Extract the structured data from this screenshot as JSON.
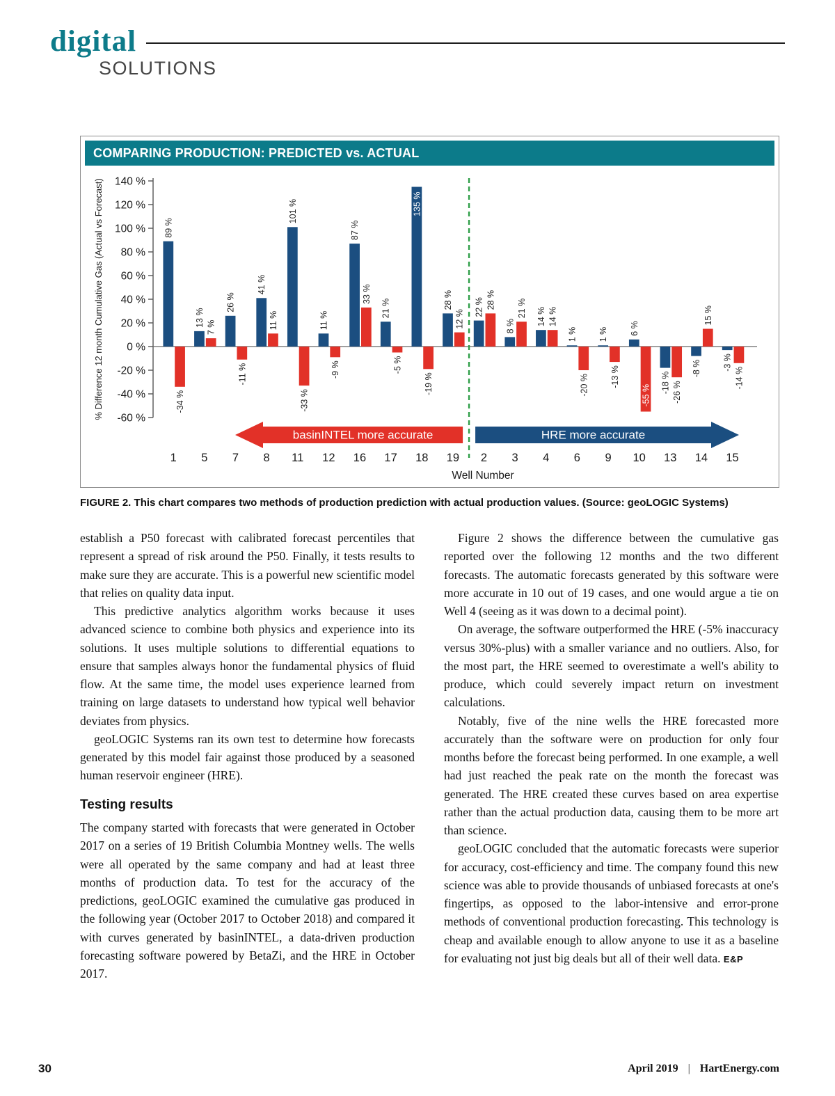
{
  "masthead": {
    "brand": "digital",
    "section": "SOLUTIONS"
  },
  "figure": {
    "title_bar": "COMPARING PRODUCTION: PREDICTED vs. ACTUAL",
    "caption_label": "FIGURE 2.",
    "caption_text": " This chart compares two methods of production prediction with actual production values. (Source: geoLOGIC Systems)"
  },
  "chart_data": {
    "type": "bar",
    "title": "COMPARING PRODUCTION: PREDICTED vs. ACTUAL",
    "xlabel": "Well Number",
    "ylabel": "% Difference 12 month Cumulative Gas (Actual vs Forecast)",
    "ylim": [
      -60,
      140
    ],
    "ytick_step": 20,
    "ytick_suffix": " %",
    "grid": false,
    "legend": "none",
    "categories": [
      "1",
      "5",
      "7",
      "8",
      "11",
      "12",
      "16",
      "17",
      "18",
      "19",
      "2",
      "3",
      "4",
      "6",
      "9",
      "10",
      "13",
      "14",
      "15"
    ],
    "series": [
      {
        "name": "HRE",
        "color": "#1b4e80",
        "values": [
          89,
          13,
          26,
          41,
          101,
          11,
          87,
          21,
          135,
          28,
          22,
          8,
          14,
          1,
          1,
          6,
          -18,
          -8,
          -3
        ]
      },
      {
        "name": "basinINTEL",
        "color": "#e23128",
        "values": [
          -34,
          7,
          -11,
          11,
          -33,
          -9,
          33,
          -5,
          -19,
          12,
          28,
          21,
          14,
          -20,
          -13,
          -55,
          -26,
          15,
          -14
        ]
      }
    ],
    "bar_label_suffix": " %",
    "divider": {
      "after_category": "19",
      "color": "#2f9e48",
      "style": "dashed"
    },
    "annotations": [
      {
        "text": "basinINTEL more accurate",
        "side": "left",
        "color": "#e23128",
        "shape": "arrow-left"
      },
      {
        "text": "HRE more accurate",
        "side": "right",
        "color": "#1b4e80",
        "shape": "arrow-right"
      }
    ]
  },
  "article": {
    "left": [
      "establish a P50 forecast with calibrated forecast percentiles that represent a spread of risk around the P50. Finally, it tests results to make sure they are accurate. This is a powerful new scientific model that relies on quality data input.",
      "This predictive analytics algorithm works because it uses advanced science to combine both physics and experience into its solutions. It uses multiple solutions to differential equations to ensure that samples always honor the fundamental physics of fluid flow. At the same time, the model uses experience learned from training on large datasets to understand how typical well behavior deviates from physics.",
      "geoLOGIC Systems ran its own test to determine how forecasts generated by this model fair against those produced by a seasoned human reservoir engineer (HRE).",
      "The company started with forecasts that were generated in October 2017 on a series of 19 British Columbia Montney wells. The wells were all operated by the same company and had at least three months of production data. To test for the accuracy of the predictions, geoLOGIC examined the cumulative gas produced in the following year (October 2017 to October 2018) and compared it with curves generated by basinINTEL, a data-driven production forecasting software powered by BetaZi, and the HRE in October 2017."
    ],
    "heading": "Testing results",
    "right": [
      "Figure 2 shows the difference between the cumulative gas reported over the following 12 months and the two different forecasts. The automatic forecasts generated by this software were more accurate in 10 out of 19 cases, and one would argue a tie on Well 4 (seeing as it was down to a decimal point).",
      "On average, the software outperformed the HRE (-5% inaccuracy versus 30%-plus) with a smaller variance and no outliers. Also, for the most part, the HRE seemed to overestimate a well's ability to produce, which could severely impact return on investment calculations.",
      "Notably, five of the nine wells the HRE forecasted more accurately than the software were on production for only four months before the forecast being performed. In one example, a well had just reached the peak rate on the month the forecast was generated. The HRE created these curves based on area expertise rather than the actual production data, causing them to be more art than science.",
      "geoLOGIC concluded that the automatic forecasts were superior for accuracy, cost-efficiency and time. The company found this new science was able to provide thousands of unbiased forecasts at one's fingertips, as opposed to the labor-intensive and error-prone methods of conventional production forecasting. This technology is cheap and available enough to allow anyone to use it as a baseline for evaluating not just big deals but all of their well data."
    ],
    "endmark": "E&P"
  },
  "footer": {
    "page_number": "30",
    "date": "April 2019",
    "separator": "|",
    "site": "HartEnergy.com"
  }
}
